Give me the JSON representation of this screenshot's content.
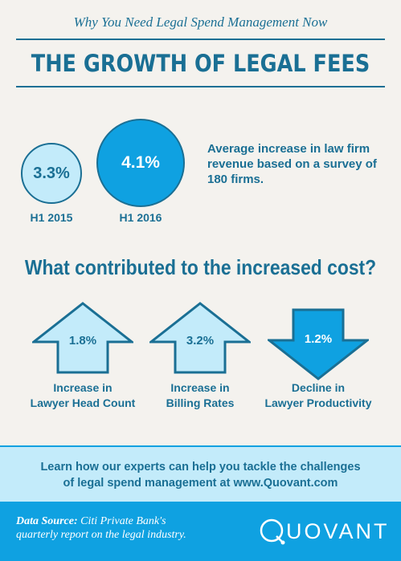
{
  "header": {
    "subtitle": "Why You Need Legal Spend Management Now",
    "title": "THE GROWTH OF LEGAL FEES"
  },
  "stats": {
    "h1_2015": {
      "value": "3.3%",
      "label": "H1 2015"
    },
    "h1_2016": {
      "value": "4.1%",
      "label": "H1 2016"
    },
    "description": "Average increase in law firm revenue based on a survey of 180 firms."
  },
  "question": "What contributed to the increased cost?",
  "factors": [
    {
      "value": "1.8%",
      "label_line1": "Increase in",
      "label_line2": "Lawyer Head Count",
      "direction": "up"
    },
    {
      "value": "3.2%",
      "label_line1": "Increase in",
      "label_line2": "Billing Rates",
      "direction": "up"
    },
    {
      "value": "1.2%",
      "label_line1": "Decline in",
      "label_line2": "Lawyer Productivity",
      "direction": "down"
    }
  ],
  "cta": {
    "line1": "Learn how our experts can help you tackle the challenges",
    "line2": "of legal spend management at www.Quovant.com"
  },
  "footer": {
    "source_label": "Data Source:",
    "source_line1": "Citi Private Bank's",
    "source_line2": "quarterly report on the legal industry.",
    "logo_q": "Q",
    "logo_rest": "UOVANT"
  },
  "colors": {
    "primary": "#1a6f94",
    "accent": "#0fa1e1",
    "light": "#c3ebfa",
    "background": "#f4f2ee"
  }
}
